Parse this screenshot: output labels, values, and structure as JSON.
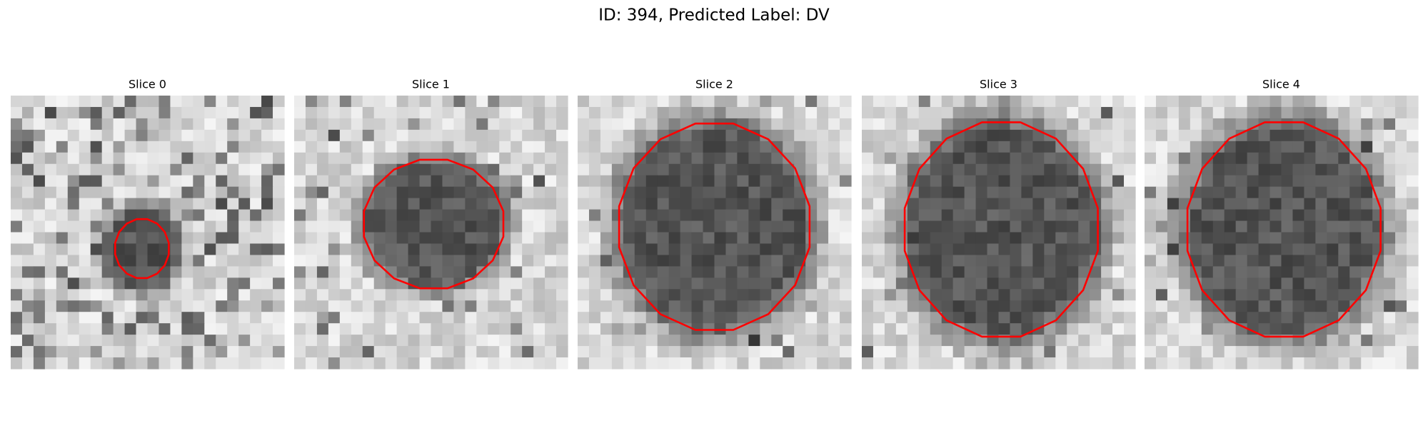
{
  "title": "ID: 394, Predicted Label: DV",
  "panels": [
    {
      "title": "Slice 0"
    },
    {
      "title": "Slice 1"
    },
    {
      "title": "Slice 2"
    },
    {
      "title": "Slice 3"
    },
    {
      "title": "Slice 4"
    }
  ]
}
